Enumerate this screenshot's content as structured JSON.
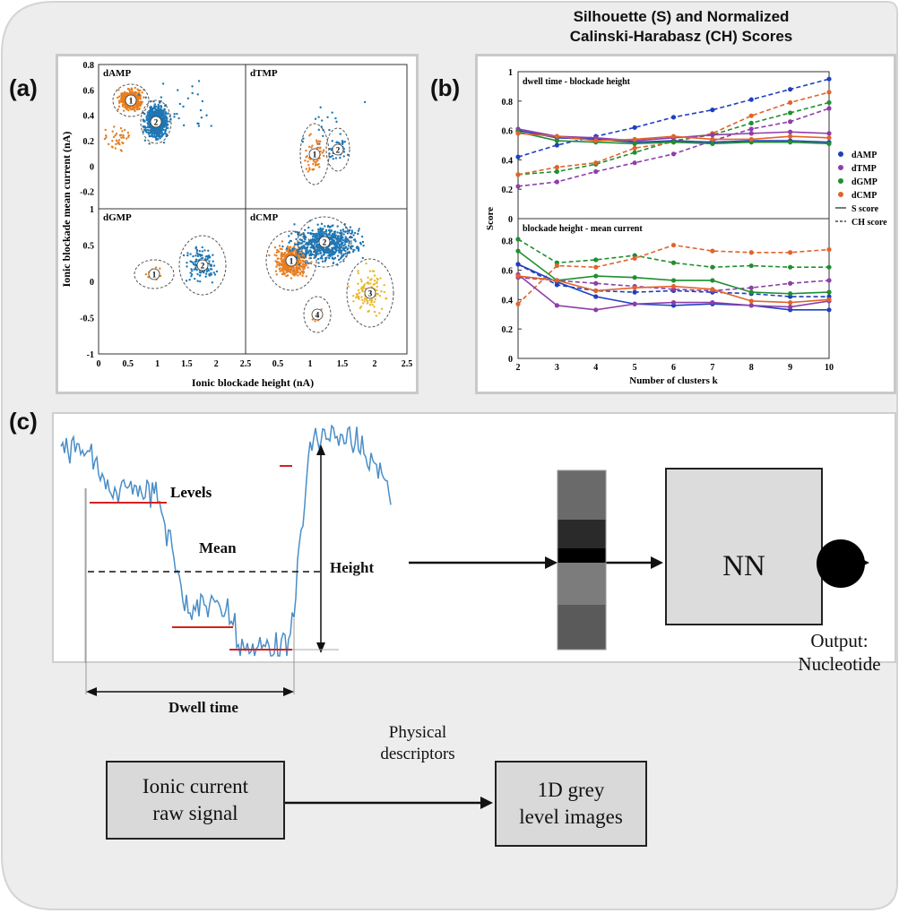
{
  "figure": {
    "panel_labels": {
      "a": "(a)",
      "b": "(b)",
      "c": "(c)"
    },
    "title_line1": "Silhouette (S) and Normalized",
    "title_line2": "Calinski-Harabasz (CH) Scores"
  },
  "panel_a": {
    "xlabel": "Ionic blockade height (nA)",
    "ylabel": "Ionic blockade mean current (nA)",
    "subplots": [
      {
        "name": "dAMP",
        "clusters": [
          "1",
          "2"
        ]
      },
      {
        "name": "dTMP",
        "clusters": [
          "1",
          "2"
        ]
      },
      {
        "name": "dGMP",
        "clusters": [
          "1",
          "2"
        ]
      },
      {
        "name": "dCMP",
        "clusters": [
          "1",
          "2",
          "3",
          "4"
        ]
      }
    ],
    "top_yticks": [
      "0.8",
      "0.6",
      "0.4",
      "0.2",
      "0",
      "-0.2"
    ],
    "bottom_yticks": [
      "1",
      "0.5",
      "0",
      "-0.5",
      "-1"
    ],
    "xticks_left": [
      "0",
      "0.5",
      "1",
      "1.5",
      "2",
      "2.5"
    ],
    "xticks_right": [
      "0.5",
      "1",
      "1.5",
      "2",
      "2.5"
    ]
  },
  "chart_data": [
    {
      "type": "line",
      "panel": "b-top",
      "title": "dwell time - blockade height",
      "x": [
        2,
        3,
        4,
        5,
        6,
        7,
        8,
        9,
        10
      ],
      "ylim": [
        0,
        1
      ],
      "yticks": [
        "0",
        "0.2",
        "0.4",
        "0.6",
        "0.8",
        "1"
      ],
      "series": [
        {
          "name": "dAMP",
          "color": "#1f3fbf",
          "style": "dashed",
          "values": [
            0.42,
            0.5,
            0.56,
            0.62,
            0.69,
            0.74,
            0.81,
            0.88,
            0.95
          ]
        },
        {
          "name": "dTMP",
          "color": "#8e3ea8",
          "style": "dashed",
          "values": [
            0.22,
            0.25,
            0.32,
            0.38,
            0.44,
            0.53,
            0.61,
            0.66,
            0.75
          ]
        },
        {
          "name": "dGMP",
          "color": "#1f8f2f",
          "style": "dashed",
          "values": [
            0.3,
            0.32,
            0.37,
            0.45,
            0.53,
            0.57,
            0.65,
            0.72,
            0.79
          ]
        },
        {
          "name": "dCMP",
          "color": "#e0642a",
          "style": "dashed",
          "values": [
            0.3,
            0.35,
            0.38,
            0.48,
            0.52,
            0.58,
            0.7,
            0.79,
            0.86
          ]
        },
        {
          "name": "dAMP",
          "color": "#1f3fbf",
          "style": "solid",
          "values": [
            0.6,
            0.55,
            0.54,
            0.52,
            0.53,
            0.52,
            0.53,
            0.53,
            0.52
          ]
        },
        {
          "name": "dTMP",
          "color": "#8e3ea8",
          "style": "solid",
          "values": [
            0.61,
            0.56,
            0.55,
            0.53,
            0.55,
            0.57,
            0.58,
            0.59,
            0.58
          ]
        },
        {
          "name": "dGMP",
          "color": "#1f8f2f",
          "style": "solid",
          "values": [
            0.59,
            0.53,
            0.52,
            0.51,
            0.52,
            0.51,
            0.52,
            0.52,
            0.51
          ]
        },
        {
          "name": "dCMP",
          "color": "#e0642a",
          "style": "solid",
          "values": [
            0.58,
            0.56,
            0.53,
            0.54,
            0.56,
            0.54,
            0.54,
            0.56,
            0.55
          ]
        }
      ]
    },
    {
      "type": "line",
      "panel": "b-bottom",
      "title": "blockade height - mean current",
      "xlabel": "Number of clusters k",
      "ylabel": "Score",
      "x": [
        2,
        3,
        4,
        5,
        6,
        7,
        8,
        9,
        10
      ],
      "ylim": [
        0,
        0.95
      ],
      "yticks": [
        "0",
        "0.2",
        "0.4",
        "0.6",
        "0.8"
      ],
      "xticks": [
        "2",
        "3",
        "4",
        "5",
        "6",
        "7",
        "8",
        "9",
        "10"
      ],
      "series": [
        {
          "name": "dAMP",
          "color": "#1f3fbf",
          "style": "dashed",
          "values": [
            0.64,
            0.5,
            0.46,
            0.45,
            0.46,
            0.45,
            0.44,
            0.42,
            0.42
          ]
        },
        {
          "name": "dTMP",
          "color": "#8e3ea8",
          "style": "dashed",
          "values": [
            0.55,
            0.53,
            0.51,
            0.49,
            0.47,
            0.46,
            0.48,
            0.51,
            0.53
          ]
        },
        {
          "name": "dGMP",
          "color": "#1f8f2f",
          "style": "dashed",
          "values": [
            0.81,
            0.65,
            0.67,
            0.7,
            0.65,
            0.62,
            0.63,
            0.62,
            0.62
          ]
        },
        {
          "name": "dCMP",
          "color": "#e0642a",
          "style": "dashed",
          "values": [
            0.37,
            0.63,
            0.62,
            0.68,
            0.77,
            0.73,
            0.72,
            0.72,
            0.74
          ]
        },
        {
          "name": "dAMP",
          "color": "#1f3fbf",
          "style": "solid",
          "values": [
            0.64,
            0.52,
            0.42,
            0.37,
            0.36,
            0.37,
            0.36,
            0.33,
            0.33
          ]
        },
        {
          "name": "dTMP",
          "color": "#8e3ea8",
          "style": "solid",
          "values": [
            0.57,
            0.36,
            0.33,
            0.37,
            0.38,
            0.38,
            0.36,
            0.35,
            0.39
          ]
        },
        {
          "name": "dGMP",
          "color": "#1f8f2f",
          "style": "solid",
          "values": [
            0.73,
            0.53,
            0.56,
            0.55,
            0.53,
            0.53,
            0.45,
            0.44,
            0.45
          ]
        },
        {
          "name": "dCMP",
          "color": "#e0642a",
          "style": "solid",
          "values": [
            0.56,
            0.53,
            0.46,
            0.48,
            0.49,
            0.47,
            0.39,
            0.38,
            0.4
          ]
        }
      ],
      "legend": {
        "placement": "right",
        "entries": [
          "dAMP",
          "dTMP",
          "dGMP",
          "dCMP"
        ],
        "s_label": "S score",
        "ch_label": "CH score"
      }
    }
  ],
  "panel_c": {
    "levels_label": "Levels",
    "mean_label": "Mean",
    "height_label": "Height",
    "dwell_label": "Dwell time",
    "nn_label": "NN",
    "output_line1": "Output:",
    "output_line2": "Nucleotide",
    "raw_line1": "Ionic current",
    "raw_line2": "raw signal",
    "descriptors_line1": "Physical",
    "descriptors_line2": "descriptors",
    "grey_line1": "1D grey",
    "grey_line2": "level images",
    "levels_color": "#d62020",
    "signal_color": "#4a8ec7"
  }
}
